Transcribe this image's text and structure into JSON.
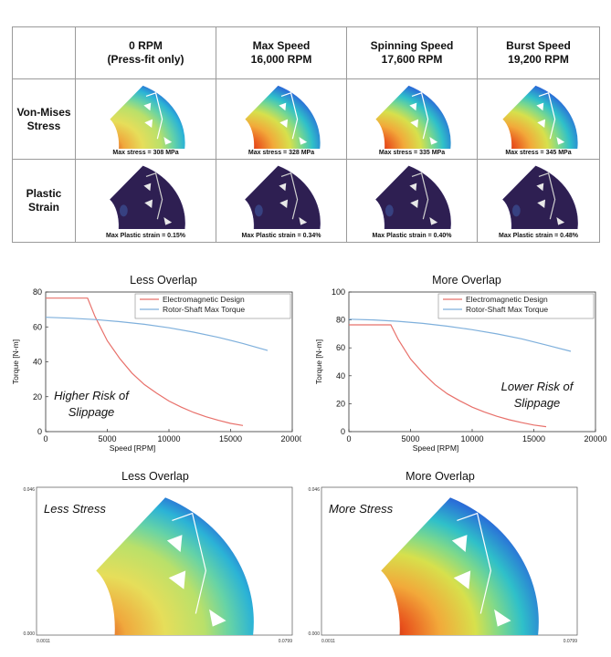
{
  "fea_table": {
    "columns": [
      {
        "line1": "0 RPM",
        "line2": "(Press-fit only)"
      },
      {
        "line1": "Max Speed",
        "line2": "16,000 RPM"
      },
      {
        "line1": "Spinning Speed",
        "line2": "17,600 RPM"
      },
      {
        "line1": "Burst Speed",
        "line2": "19,200 RPM"
      }
    ],
    "rows": [
      {
        "label_line1": "Von-Mises",
        "label_line2": "Stress",
        "captions": [
          "Max stress = 308 MPa",
          "Max stress = 328 MPa",
          "Max stress = 335 MPa",
          "Max stress = 345 MPa"
        ]
      },
      {
        "label_line1": "Plastic",
        "label_line2": "Strain",
        "captions": [
          "Max Plastic strain = 0.15%",
          "Max Plastic strain = 0.34%",
          "Max Plastic strain = 0.40%",
          "Max Plastic strain = 0.48%"
        ]
      }
    ]
  },
  "colors": {
    "em_design": "#e8706a",
    "shaft_torque": "#7fb0dc",
    "strain_bg": "#2e1f52"
  },
  "chart_data": [
    {
      "type": "line",
      "title": "Less Overlap",
      "xlabel": "Speed [RPM]",
      "ylabel": "Torque [N-m]",
      "xlim": [
        0,
        20000
      ],
      "ylim": [
        0,
        80
      ],
      "xticks": [
        0,
        5000,
        10000,
        15000,
        20000
      ],
      "yticks": [
        0,
        20,
        40,
        60,
        80
      ],
      "legend_position": "top-right",
      "annotation": [
        "Higher Risk of",
        "Slippage"
      ],
      "series": [
        {
          "name": "Electromagnetic Design",
          "x": [
            0,
            3400,
            4000,
            5000,
            6000,
            7000,
            8000,
            9000,
            10000,
            11000,
            12000,
            13000,
            14000,
            15000,
            16000
          ],
          "y": [
            76.5,
            76.5,
            66,
            52,
            42,
            33.5,
            27,
            22,
            17.5,
            14,
            11,
            8.5,
            6.5,
            4.7,
            3.5
          ]
        },
        {
          "name": "Rotor-Shaft Max Torque",
          "x": [
            0,
            2000,
            4000,
            6000,
            8000,
            10000,
            12000,
            14000,
            16000,
            18000
          ],
          "y": [
            65.5,
            65,
            64.2,
            63,
            61.5,
            59.5,
            57,
            54,
            50.5,
            46.5
          ]
        }
      ]
    },
    {
      "type": "line",
      "title": "More Overlap",
      "xlabel": "Speed [RPM]",
      "ylabel": "Torque [N-m]",
      "xlim": [
        0,
        20000
      ],
      "ylim": [
        0,
        100
      ],
      "xticks": [
        0,
        5000,
        10000,
        15000,
        20000
      ],
      "yticks": [
        0,
        20,
        40,
        60,
        80,
        100
      ],
      "legend_position": "top-right",
      "annotation": [
        "Lower Risk of",
        "Slippage"
      ],
      "series": [
        {
          "name": "Electromagnetic Design",
          "x": [
            0,
            3400,
            4000,
            5000,
            6000,
            7000,
            8000,
            9000,
            10000,
            11000,
            12000,
            13000,
            14000,
            15000,
            16000
          ],
          "y": [
            76.5,
            76.5,
            66,
            52,
            42,
            33.5,
            27,
            22,
            17.5,
            14,
            11,
            8.5,
            6.5,
            4.7,
            3.5
          ]
        },
        {
          "name": "Rotor-Shaft Max Torque",
          "x": [
            0,
            2000,
            4000,
            6000,
            8000,
            10000,
            12000,
            14000,
            16000,
            18000
          ],
          "y": [
            80.5,
            80,
            79,
            77.5,
            75.5,
            73,
            70,
            66.5,
            62,
            57.5
          ]
        }
      ]
    }
  ],
  "stress_maps": [
    {
      "title": "Less Overlap",
      "label": "Less Stress",
      "y_top": "0.046",
      "y_bottom": "0.000",
      "x_left": "0.0011",
      "x_right": "0.0799"
    },
    {
      "title": "More Overlap",
      "label": "More Stress",
      "y_top": "0.046",
      "y_bottom": "0.000",
      "x_left": "0.0011",
      "x_right": "0.0799"
    }
  ]
}
